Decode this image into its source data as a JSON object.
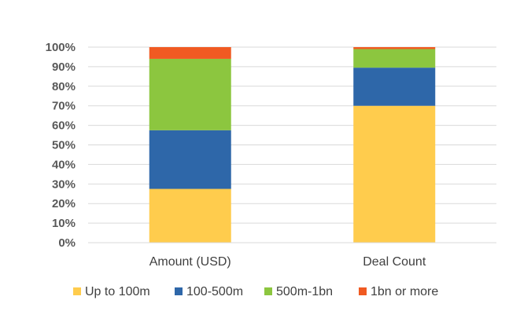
{
  "chart_data": {
    "type": "bar",
    "stacked": true,
    "percent": true,
    "categories": [
      "Amount (USD)",
      "Deal Count"
    ],
    "series": [
      {
        "name": "Up to 100m",
        "values": [
          27.5,
          70
        ],
        "color": "#FFCC4D"
      },
      {
        "name": "100-500m",
        "values": [
          30,
          19.5
        ],
        "color": "#2E67A9"
      },
      {
        "name": "500m-1bn",
        "values": [
          36.5,
          9.5
        ],
        "color": "#8CC63F"
      },
      {
        "name": "1bn or more",
        "values": [
          6,
          1
        ],
        "color": "#F05A22"
      }
    ],
    "ylim": [
      0,
      100
    ],
    "yticks": [
      "0%",
      "10%",
      "20%",
      "30%",
      "40%",
      "50%",
      "60%",
      "70%",
      "80%",
      "90%",
      "100%"
    ],
    "title": "",
    "xlabel": "",
    "ylabel": "",
    "grid": true,
    "legend_position": "bottom"
  }
}
